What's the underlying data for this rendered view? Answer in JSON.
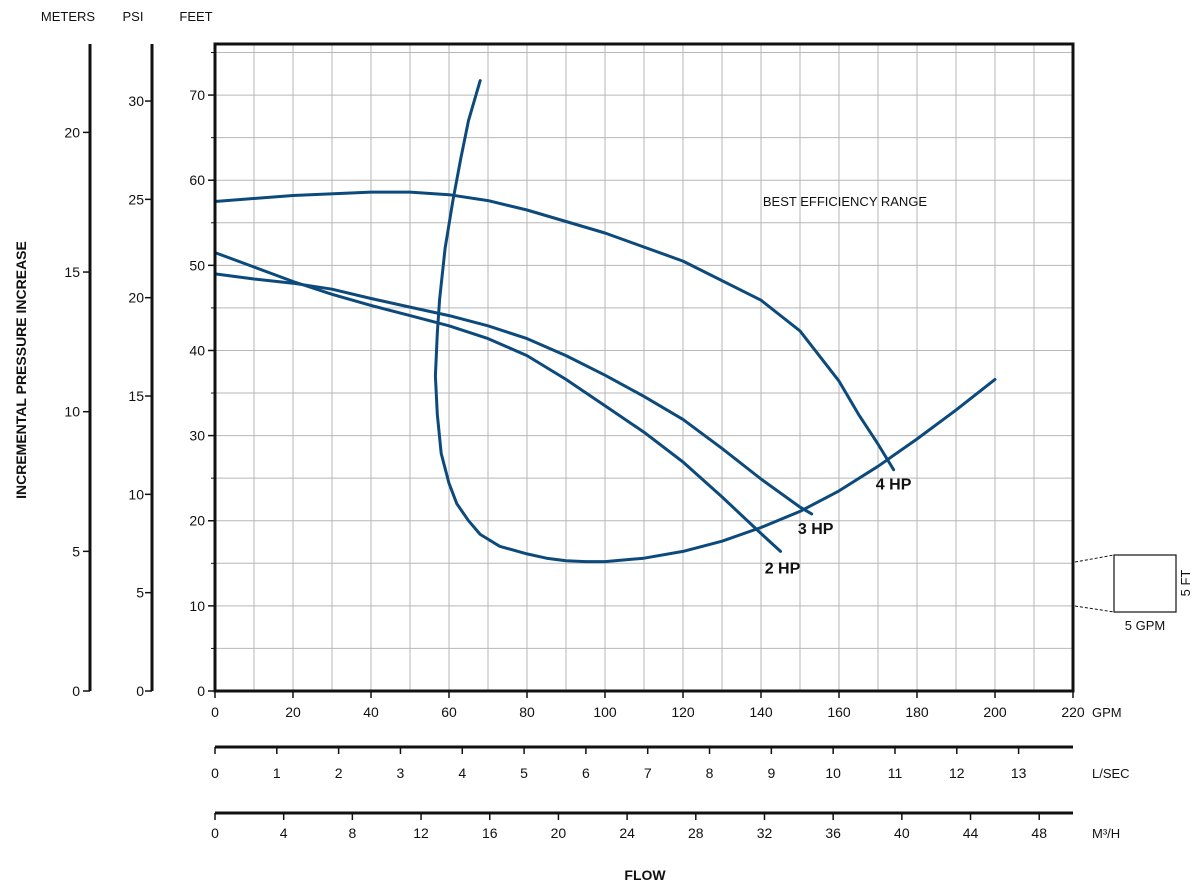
{
  "chart_data": {
    "type": "line",
    "title": "",
    "annotation": "BEST EFFICIENCY RANGE",
    "xlabel": "FLOW",
    "ylabel": "INCREMENTAL PRESSURE INCREASE",
    "grid": true,
    "x_axes": [
      {
        "unit": "GPM",
        "range": [
          0,
          220
        ],
        "ticks": [
          "0",
          "20",
          "40",
          "60",
          "80",
          "100",
          "120",
          "140",
          "160",
          "180",
          "200",
          "220"
        ]
      },
      {
        "unit": "L/SEC",
        "range": [
          0,
          13.88
        ],
        "ticks": [
          "0",
          "1",
          "2",
          "3",
          "4",
          "5",
          "6",
          "7",
          "8",
          "9",
          "10",
          "11",
          "12",
          "13"
        ]
      },
      {
        "unit": "M³/H",
        "range": [
          0,
          49.97
        ],
        "ticks": [
          "0",
          "4",
          "8",
          "12",
          "16",
          "20",
          "24",
          "28",
          "32",
          "36",
          "40",
          "44",
          "48"
        ]
      }
    ],
    "y_axes": [
      {
        "unit": "FEET",
        "range": [
          0,
          76
        ],
        "ticks": [
          "0",
          "10",
          "20",
          "30",
          "40",
          "50",
          "60",
          "70"
        ]
      },
      {
        "unit": "PSI",
        "range": [
          0,
          32.9
        ],
        "ticks": [
          "0",
          "5",
          "10",
          "15",
          "20",
          "25",
          "30"
        ]
      },
      {
        "unit": "METERS",
        "range": [
          0,
          23.16
        ],
        "ticks": [
          "0",
          "5",
          "10",
          "15",
          "20"
        ]
      }
    ],
    "series": [
      {
        "name": "4 HP",
        "color": "#0d4a7c",
        "x": [
          0,
          20,
          40,
          50,
          60,
          70,
          80,
          100,
          120,
          140,
          150,
          160,
          165,
          170,
          174
        ],
        "y": [
          57.5,
          58.2,
          58.6,
          58.6,
          58.3,
          57.6,
          56.5,
          53.8,
          50.5,
          45.9,
          42.3,
          36.4,
          32.5,
          29.0,
          26.0
        ]
      },
      {
        "name": "3 HP",
        "color": "#0d4a7c",
        "x": [
          0,
          10,
          20,
          30,
          40,
          50,
          60,
          70,
          80,
          90,
          100,
          110,
          120,
          130,
          140,
          150,
          153
        ],
        "y": [
          49.0,
          48.4,
          47.9,
          47.2,
          46.1,
          45.1,
          44.1,
          42.9,
          41.4,
          39.4,
          37.1,
          34.6,
          31.9,
          28.5,
          24.9,
          21.6,
          20.8
        ]
      },
      {
        "name": "2 HP",
        "color": "#0d4a7c",
        "x": [
          0,
          10,
          20,
          30,
          40,
          50,
          60,
          70,
          80,
          90,
          100,
          110,
          120,
          130,
          140,
          145
        ],
        "y": [
          51.5,
          49.8,
          48.1,
          46.6,
          45.3,
          44.1,
          42.9,
          41.4,
          39.4,
          36.6,
          33.5,
          30.4,
          26.9,
          22.8,
          18.5,
          16.4
        ]
      }
    ],
    "best_efficiency_curve": {
      "x": [
        68,
        65,
        63,
        61,
        59,
        57.6,
        57,
        56.5,
        57,
        58,
        60,
        62,
        65,
        68,
        73,
        80,
        85,
        90,
        95,
        100,
        110,
        120,
        130,
        140,
        150,
        160,
        170,
        180,
        190,
        200
      ],
      "y": [
        71.7,
        67.0,
        62.5,
        57.6,
        52.0,
        46.0,
        42.0,
        37.0,
        32.5,
        27.9,
        24.4,
        22.0,
        20.0,
        18.4,
        17.0,
        16.1,
        15.6,
        15.3,
        15.2,
        15.2,
        15.6,
        16.4,
        17.6,
        19.2,
        21.1,
        23.5,
        26.4,
        29.6,
        33.0,
        36.6
      ]
    },
    "scale_box": {
      "width_label": "5 GPM",
      "height_label": "5 FT"
    }
  }
}
